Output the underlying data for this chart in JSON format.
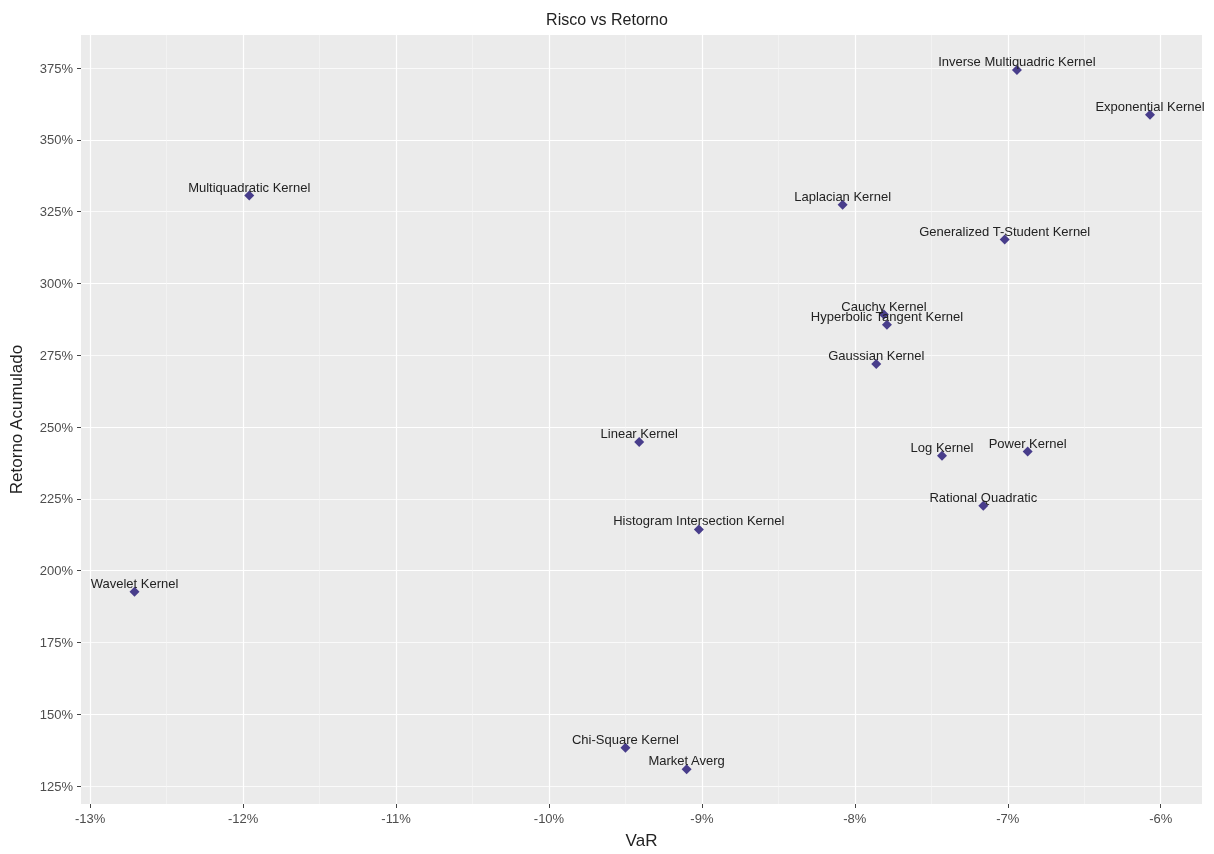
{
  "chart_data": {
    "type": "scatter",
    "title": "Risco vs Retorno",
    "xlabel": "VaR",
    "ylabel": "Retorno Acumulado",
    "x": [
      -6.94,
      -6.07,
      -11.96,
      -8.08,
      -7.02,
      -7.81,
      -7.79,
      -7.86,
      -9.41,
      -7.43,
      -6.87,
      -7.16,
      -9.02,
      -12.71,
      -9.5,
      -9.1
    ],
    "series": [
      {
        "color": "#483d8b",
        "values": [
          374.3,
          358.7,
          330.6,
          327.4,
          315.3,
          289.2,
          285.6,
          272.0,
          244.8,
          240.0,
          241.5,
          222.6,
          214.4,
          192.7,
          138.4,
          130.9
        ]
      }
    ],
    "annotations": [
      {
        "text": "Inverse Multiquadric Kernel",
        "x": -6.94,
        "y": 374.3
      },
      {
        "text": "Exponential Kernel",
        "x": -6.07,
        "y": 358.7
      },
      {
        "text": "Multiquadratic Kernel",
        "x": -11.96,
        "y": 330.6
      },
      {
        "text": "Laplacian Kernel",
        "x": -8.08,
        "y": 327.4
      },
      {
        "text": "Generalized T-Student Kernel",
        "x": -7.02,
        "y": 315.3
      },
      {
        "text": "Cauchy Kernel",
        "x": -7.81,
        "y": 289.2
      },
      {
        "text": "Hyperbolic Tangent Kernel",
        "x": -7.79,
        "y": 285.6
      },
      {
        "text": "Gaussian Kernel",
        "x": -7.86,
        "y": 272.0
      },
      {
        "text": "Linear Kernel",
        "x": -9.41,
        "y": 244.8
      },
      {
        "text": "Log Kernel",
        "x": -7.43,
        "y": 240.0
      },
      {
        "text": "Power Kernel",
        "x": -6.87,
        "y": 241.5
      },
      {
        "text": "Rational Quadratic",
        "x": -7.16,
        "y": 222.6
      },
      {
        "text": "Histogram Intersection Kernel",
        "x": -9.02,
        "y": 214.4
      },
      {
        "text": "Wavelet Kernel",
        "x": -12.71,
        "y": 192.7
      },
      {
        "text": "Chi-Square Kernel",
        "x": -9.5,
        "y": 138.4
      },
      {
        "text": "Market Averg",
        "x": -9.1,
        "y": 130.9
      }
    ],
    "xlim": [
      -13.06,
      -5.73
    ],
    "xticks": [
      {
        "value": -13,
        "label": "-13%"
      },
      {
        "value": -12,
        "label": "-12%"
      },
      {
        "value": -11,
        "label": "-11%"
      },
      {
        "value": -10,
        "label": "-10%"
      },
      {
        "value": -9,
        "label": "-9%"
      },
      {
        "value": -8,
        "label": "-8%"
      },
      {
        "value": -7,
        "label": "-7%"
      },
      {
        "value": -6,
        "label": "-6%"
      }
    ],
    "ylim": [
      118.8,
      386.5
    ],
    "yticks": [
      {
        "value": 125,
        "label": "125%"
      },
      {
        "value": 150,
        "label": "150%"
      },
      {
        "value": 175,
        "label": "175%"
      },
      {
        "value": 200,
        "label": "200%"
      },
      {
        "value": 225,
        "label": "225%"
      },
      {
        "value": 250,
        "label": "250%"
      },
      {
        "value": 275,
        "label": "275%"
      },
      {
        "value": 300,
        "label": "300%"
      },
      {
        "value": 325,
        "label": "325%"
      },
      {
        "value": 350,
        "label": "350%"
      },
      {
        "value": 375,
        "label": "375%"
      }
    ],
    "grid": true,
    "marker": "diamond"
  }
}
